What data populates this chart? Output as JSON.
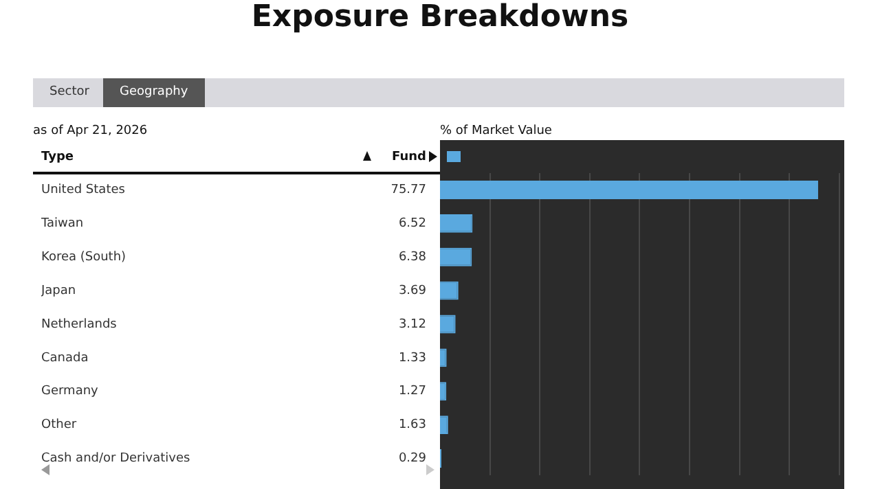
{
  "chart_data": {
    "type": "bar",
    "orientation": "horizontal",
    "title": "Exposure Breakdowns",
    "ylabel": "Type",
    "xlabel": "% of Market Value",
    "annotations": [
      "Sector",
      "Geography",
      "as of Apr 21, 2026"
    ],
    "categories": [
      "United States",
      "Taiwan",
      "Korea (South)",
      "Japan",
      "Netherlands",
      "Canada",
      "Germany",
      "Other",
      "Cash and/or Derivatives"
    ],
    "series": [
      {
        "name": "Fund",
        "color": "#5aa9df",
        "values": [
          75.77,
          6.52,
          6.38,
          3.69,
          3.12,
          1.33,
          1.27,
          1.63,
          0.29
        ]
      }
    ],
    "data_labels": true,
    "legend": "top left",
    "grid": "x",
    "tick_labels": "y",
    "xlim": [
      0,
      81
    ],
    "xticks": [
      {
        "value": 10,
        "label": null
      },
      {
        "value": 20,
        "label": null
      },
      {
        "value": 30,
        "label": null
      },
      {
        "value": 40,
        "label": null
      },
      {
        "value": 50,
        "label": null
      },
      {
        "value": 60,
        "label": null
      },
      {
        "value": 70,
        "label": null
      },
      {
        "value": 80,
        "label": null
      }
    ]
  }
}
